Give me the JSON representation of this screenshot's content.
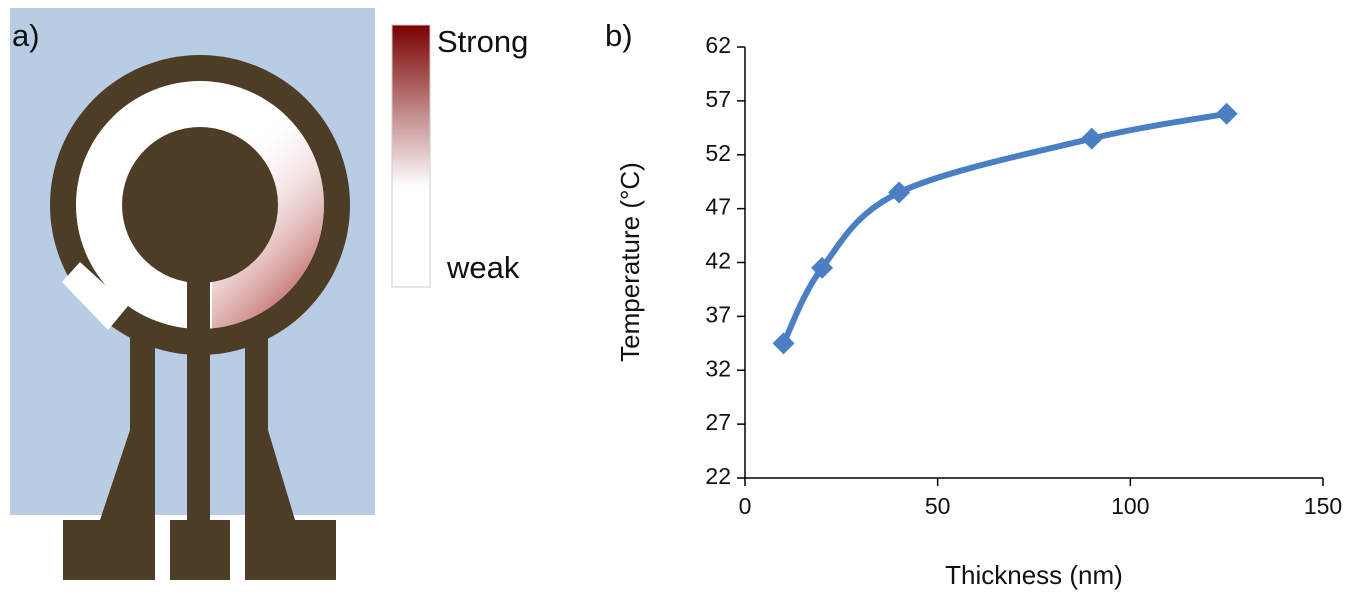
{
  "diagram": {
    "label": "a)",
    "scale_high": "Strong",
    "scale_low": "weak"
  },
  "chart_data": {
    "type": "line",
    "panel_label": "b)",
    "x_label": "Thickness (nm)",
    "y_label": "Temperature (°C)",
    "x": [
      10,
      20,
      40,
      90,
      125
    ],
    "series": [
      {
        "color": "#4a7fc4",
        "values": [
          34.5,
          41.5,
          48.5,
          53.5,
          55.8
        ]
      }
    ],
    "xlim": [
      0,
      150
    ],
    "xticks": [
      0,
      50,
      100,
      150
    ],
    "ylim": [
      22,
      62
    ],
    "yticks": [
      22,
      27,
      32,
      37,
      42,
      47,
      52,
      57,
      62
    ],
    "grid": false
  }
}
